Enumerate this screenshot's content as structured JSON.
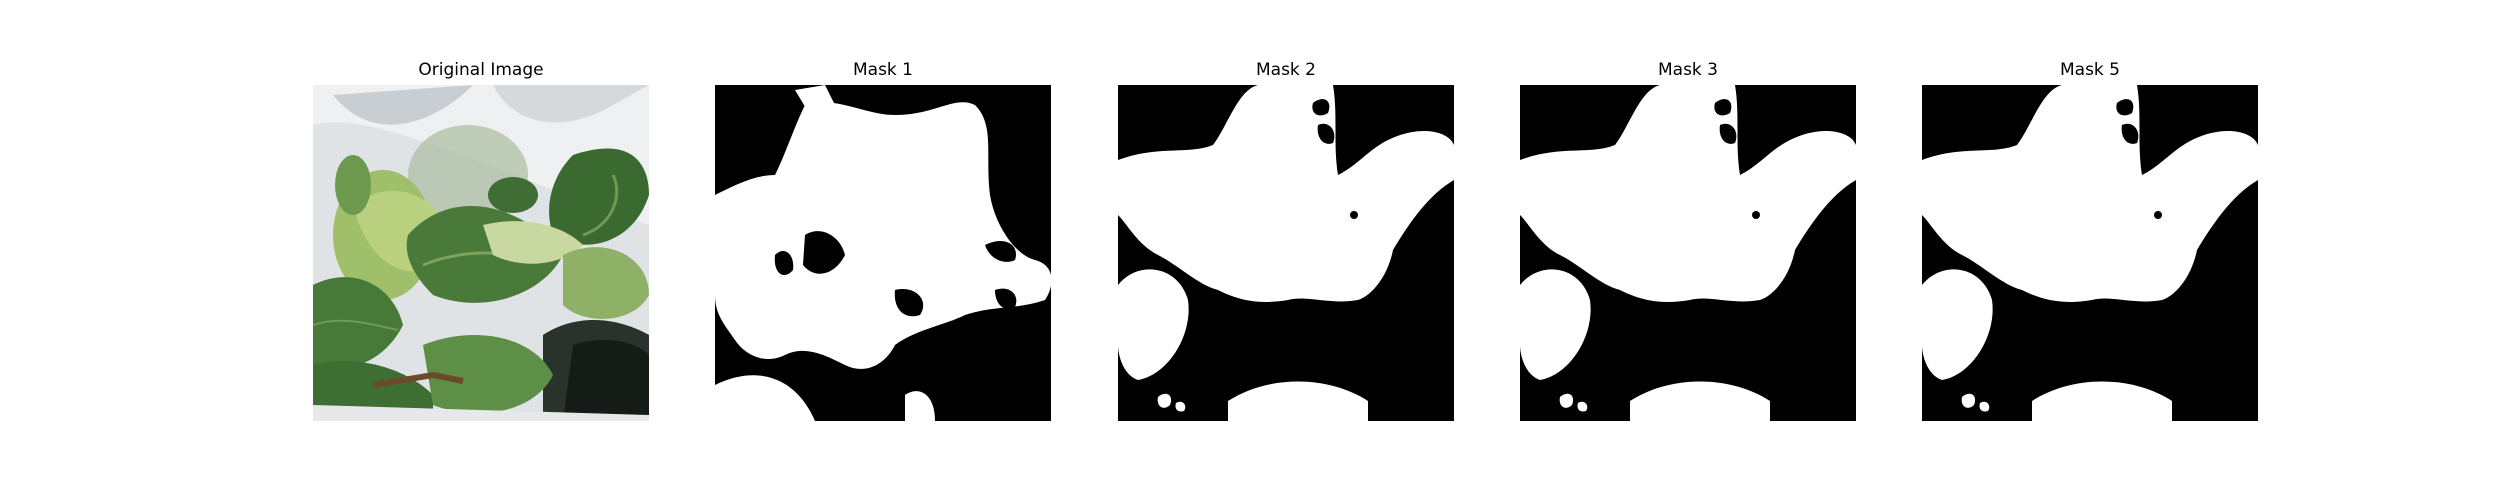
{
  "figure": {
    "panels": [
      {
        "title": "Original Image",
        "kind": "photo"
      },
      {
        "title": "Mask 1",
        "kind": "mask-1"
      },
      {
        "title": "Mask 2",
        "kind": "mask-2"
      },
      {
        "title": "Mask 3",
        "kind": "mask-3"
      },
      {
        "title": "Mask 5",
        "kind": "mask-5"
      }
    ]
  },
  "colors": {
    "mask_foreground": "#ffffff",
    "mask_background": "#000000",
    "leaf_dark": "#3e6a35",
    "leaf_light": "#9bbd6a",
    "plastic": "#d9dde1"
  }
}
